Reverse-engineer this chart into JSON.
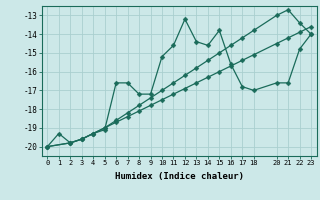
{
  "xlabel": "Humidex (Indice chaleur)",
  "bg_color": "#cce8e8",
  "line_color": "#1a6b5a",
  "grid_color": "#aacfcf",
  "xlim": [
    -0.5,
    23.5
  ],
  "ylim": [
    -20.5,
    -12.5
  ],
  "yticks": [
    -20,
    -19,
    -18,
    -17,
    -16,
    -15,
    -14,
    -13
  ],
  "xticks": [
    0,
    1,
    2,
    3,
    4,
    5,
    6,
    7,
    8,
    9,
    10,
    11,
    12,
    13,
    14,
    15,
    16,
    17,
    18,
    20,
    21,
    22,
    23
  ],
  "line1_x": [
    0,
    1,
    2,
    3,
    4,
    5,
    6,
    7,
    8,
    9,
    10,
    11,
    12,
    13,
    14,
    15,
    16,
    17,
    18,
    20,
    21,
    22,
    23
  ],
  "line1_y": [
    -20.0,
    -19.3,
    -19.8,
    -19.6,
    -19.3,
    -19.1,
    -16.6,
    -16.6,
    -17.2,
    -17.2,
    -15.2,
    -14.6,
    -13.2,
    -14.4,
    -14.6,
    -13.8,
    -15.6,
    -16.8,
    -17.0,
    -16.6,
    -16.6,
    -14.8,
    -14.0
  ],
  "line2_x": [
    0,
    2,
    3,
    4,
    5,
    6,
    7,
    8,
    9,
    10,
    11,
    12,
    13,
    14,
    15,
    16,
    17,
    18,
    20,
    21,
    22,
    23
  ],
  "line2_y": [
    -20.0,
    -19.8,
    -19.6,
    -19.3,
    -19.0,
    -18.7,
    -18.4,
    -18.1,
    -17.8,
    -17.5,
    -17.2,
    -16.9,
    -16.6,
    -16.3,
    -16.0,
    -15.7,
    -15.4,
    -15.1,
    -14.5,
    -14.2,
    -13.9,
    -13.6
  ],
  "line3_x": [
    0,
    2,
    3,
    4,
    5,
    6,
    7,
    8,
    9,
    10,
    11,
    12,
    13,
    14,
    15,
    16,
    17,
    18,
    20,
    21,
    22,
    23
  ],
  "line3_y": [
    -20.0,
    -19.8,
    -19.6,
    -19.3,
    -19.0,
    -18.6,
    -18.2,
    -17.8,
    -17.4,
    -17.0,
    -16.6,
    -16.2,
    -15.8,
    -15.4,
    -15.0,
    -14.6,
    -14.2,
    -13.8,
    -13.0,
    -12.7,
    -13.4,
    -14.0
  ]
}
